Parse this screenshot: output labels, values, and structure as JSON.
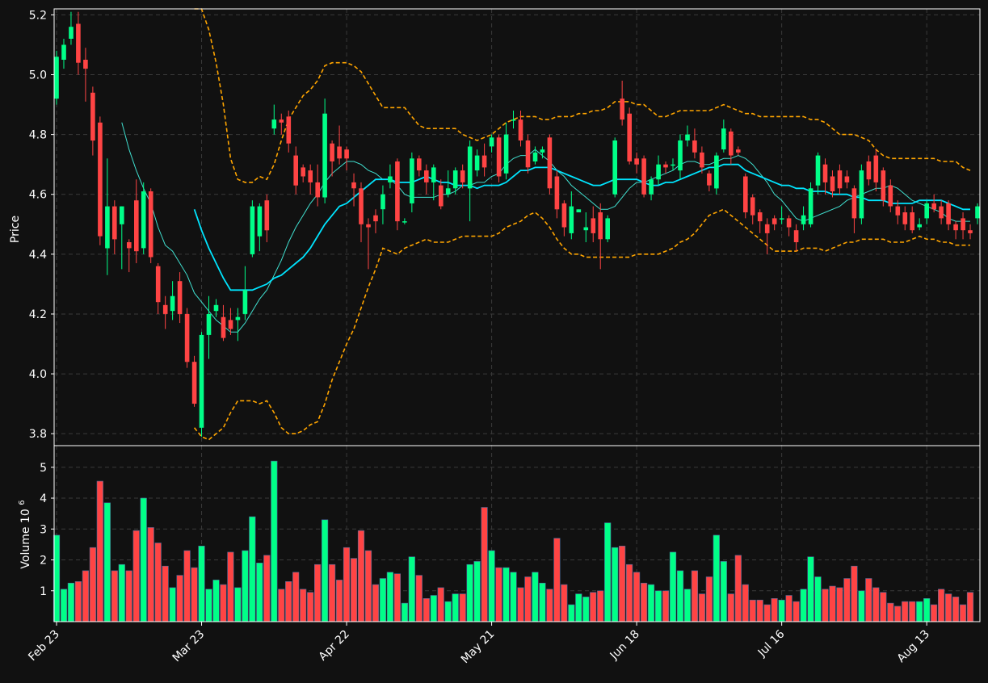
{
  "chart_data": {
    "type": "candlestick",
    "theme": {
      "background": "#111111",
      "up_color": "#00ff88",
      "down_color": "#ff4444",
      "grid": "dashed",
      "ma_short_color": "#40e0d0",
      "ma_long_color": "#00e5ff",
      "band_color": "#ffa500"
    },
    "price_panel": {
      "ylabel": "Price",
      "ylim": [
        3.76,
        5.22
      ],
      "yticks": [
        "3.8",
        "4.0",
        "4.2",
        "4.4",
        "4.6",
        "4.8",
        "5.0",
        "5.2"
      ]
    },
    "volume_panel": {
      "ylabel": "Volume",
      "ylabel_exponent": "6",
      "ylim": [
        0,
        5.7
      ],
      "yticks": [
        "1",
        "2",
        "3",
        "4",
        "5"
      ]
    },
    "xticks": [
      "Feb 23",
      "Mar 23",
      "Apr 22",
      "May 21",
      "Jun 18",
      "Jul 16",
      "Aug 13"
    ],
    "xtick_positions": [
      0,
      20,
      40,
      60,
      80,
      100,
      120
    ],
    "candles": [
      [
        4.92,
        5.06,
        5.08,
        4.9
      ],
      [
        5.05,
        5.1,
        5.12,
        5.02
      ],
      [
        5.12,
        5.16,
        5.21,
        5.1
      ],
      [
        5.17,
        5.04,
        5.21,
        5.0
      ],
      [
        5.05,
        5.02,
        5.09,
        4.91
      ],
      [
        4.94,
        4.78,
        4.96,
        4.73
      ],
      [
        4.84,
        4.46,
        4.86,
        4.43
      ],
      [
        4.42,
        4.56,
        4.72,
        4.33
      ],
      [
        4.56,
        4.45,
        4.58,
        4.4
      ],
      [
        4.5,
        4.56,
        4.56,
        4.35
      ],
      [
        4.44,
        4.42,
        4.45,
        4.34
      ],
      [
        4.58,
        4.41,
        4.65,
        4.37
      ],
      [
        4.42,
        4.61,
        4.64,
        4.4
      ],
      [
        4.61,
        4.39,
        4.62,
        4.37
      ],
      [
        4.36,
        4.24,
        4.37,
        4.2
      ],
      [
        4.23,
        4.2,
        4.26,
        4.15
      ],
      [
        4.21,
        4.26,
        4.31,
        4.18
      ],
      [
        4.31,
        4.2,
        4.34,
        4.17
      ],
      [
        4.2,
        4.04,
        4.22,
        4.02
      ],
      [
        4.04,
        3.9,
        4.06,
        3.89
      ],
      [
        3.82,
        4.13,
        4.14,
        3.79
      ],
      [
        4.13,
        4.2,
        4.26,
        4.05
      ],
      [
        4.21,
        4.23,
        4.25,
        4.19
      ],
      [
        4.19,
        4.12,
        4.23,
        4.11
      ],
      [
        4.18,
        4.15,
        4.22,
        4.13
      ],
      [
        4.18,
        4.19,
        4.22,
        4.11
      ],
      [
        4.2,
        4.28,
        4.36,
        4.18
      ],
      [
        4.4,
        4.56,
        4.58,
        4.39
      ],
      [
        4.46,
        4.56,
        4.57,
        4.41
      ],
      [
        4.58,
        4.48,
        4.6,
        4.44
      ],
      [
        4.82,
        4.85,
        4.9,
        4.8
      ],
      [
        4.85,
        4.84,
        4.87,
        4.8
      ],
      [
        4.86,
        4.77,
        4.88,
        4.74
      ],
      [
        4.73,
        4.63,
        4.76,
        4.6
      ],
      [
        4.69,
        4.66,
        4.7,
        4.64
      ],
      [
        4.68,
        4.64,
        4.7,
        4.6
      ],
      [
        4.64,
        4.59,
        4.7,
        4.56
      ],
      [
        4.59,
        4.87,
        4.92,
        4.57
      ],
      [
        4.77,
        4.71,
        4.78,
        4.66
      ],
      [
        4.76,
        4.72,
        4.83,
        4.7
      ],
      [
        4.75,
        4.72,
        4.76,
        4.68
      ],
      [
        4.64,
        4.62,
        4.67,
        4.56
      ],
      [
        4.62,
        4.5,
        4.64,
        4.44
      ],
      [
        4.5,
        4.49,
        4.52,
        4.35
      ],
      [
        4.53,
        4.51,
        4.55,
        4.47
      ],
      [
        4.55,
        4.6,
        4.63,
        4.5
      ],
      [
        4.64,
        4.66,
        4.7,
        4.62
      ],
      [
        4.71,
        4.51,
        4.72,
        4.48
      ],
      [
        4.51,
        4.51,
        4.52,
        4.5
      ],
      [
        4.57,
        4.72,
        4.74,
        4.54
      ],
      [
        4.72,
        4.68,
        4.73,
        4.66
      ],
      [
        4.68,
        4.64,
        4.7,
        4.6
      ],
      [
        4.64,
        4.69,
        4.7,
        4.58
      ],
      [
        4.63,
        4.56,
        4.65,
        4.55
      ],
      [
        4.6,
        4.62,
        4.68,
        4.59
      ],
      [
        4.62,
        4.68,
        4.69,
        4.6
      ],
      [
        4.68,
        4.64,
        4.7,
        4.62
      ],
      [
        4.62,
        4.76,
        4.78,
        4.51
      ],
      [
        4.68,
        4.73,
        4.75,
        4.66
      ],
      [
        4.73,
        4.69,
        4.77,
        4.66
      ],
      [
        4.76,
        4.79,
        4.8,
        4.74
      ],
      [
        4.79,
        4.66,
        4.8,
        4.64
      ],
      [
        4.67,
        4.8,
        4.84,
        4.65
      ],
      [
        4.85,
        4.85,
        4.88,
        4.82
      ],
      [
        4.85,
        4.78,
        4.88,
        4.76
      ],
      [
        4.78,
        4.69,
        4.8,
        4.67
      ],
      [
        4.71,
        4.74,
        4.76,
        4.7
      ],
      [
        4.74,
        4.75,
        4.76,
        4.72
      ],
      [
        4.79,
        4.62,
        4.8,
        4.6
      ],
      [
        4.66,
        4.55,
        4.68,
        4.52
      ],
      [
        4.57,
        4.49,
        4.58,
        4.46
      ],
      [
        4.47,
        4.56,
        4.61,
        4.45
      ],
      [
        4.54,
        4.55,
        4.55,
        4.54
      ],
      [
        4.48,
        4.49,
        4.54,
        4.44
      ],
      [
        4.52,
        4.47,
        4.56,
        4.44
      ],
      [
        4.54,
        4.45,
        4.57,
        4.35
      ],
      [
        4.45,
        4.52,
        4.53,
        4.44
      ],
      [
        4.6,
        4.78,
        4.79,
        4.59
      ],
      [
        4.92,
        4.85,
        4.98,
        4.83
      ],
      [
        4.87,
        4.71,
        4.89,
        4.7
      ],
      [
        4.72,
        4.7,
        4.74,
        4.67
      ],
      [
        4.72,
        4.6,
        4.73,
        4.59
      ],
      [
        4.6,
        4.65,
        4.66,
        4.58
      ],
      [
        4.65,
        4.7,
        4.73,
        4.63
      ],
      [
        4.7,
        4.69,
        4.71,
        4.67
      ],
      [
        4.7,
        4.7,
        4.72,
        4.68
      ],
      [
        4.68,
        4.78,
        4.8,
        4.65
      ],
      [
        4.78,
        4.8,
        4.83,
        4.76
      ],
      [
        4.78,
        4.74,
        4.82,
        4.72
      ],
      [
        4.74,
        4.69,
        4.76,
        4.67
      ],
      [
        4.67,
        4.63,
        4.68,
        4.61
      ],
      [
        4.62,
        4.73,
        4.74,
        4.6
      ],
      [
        4.75,
        4.82,
        4.85,
        4.74
      ],
      [
        4.81,
        4.73,
        4.82,
        4.7
      ],
      [
        4.75,
        4.74,
        4.76,
        4.73
      ],
      [
        4.66,
        4.54,
        4.67,
        4.52
      ],
      [
        4.59,
        4.53,
        4.6,
        4.5
      ],
      [
        4.54,
        4.51,
        4.55,
        4.47
      ],
      [
        4.5,
        4.47,
        4.52,
        4.4
      ],
      [
        4.52,
        4.5,
        4.53,
        4.48
      ],
      [
        4.52,
        4.52,
        4.56,
        4.5
      ],
      [
        4.52,
        4.49,
        4.53,
        4.46
      ],
      [
        4.48,
        4.44,
        4.5,
        4.41
      ],
      [
        4.5,
        4.53,
        4.56,
        4.48
      ],
      [
        4.5,
        4.62,
        4.64,
        4.49
      ],
      [
        4.63,
        4.73,
        4.74,
        4.6
      ],
      [
        4.7,
        4.64,
        4.72,
        4.6
      ],
      [
        4.66,
        4.61,
        4.68,
        4.59
      ],
      [
        4.68,
        4.62,
        4.7,
        4.6
      ],
      [
        4.66,
        4.64,
        4.68,
        4.62
      ],
      [
        4.62,
        4.52,
        4.63,
        4.47
      ],
      [
        4.52,
        4.68,
        4.7,
        4.5
      ],
      [
        4.71,
        4.65,
        4.73,
        4.63
      ],
      [
        4.73,
        4.64,
        4.75,
        4.61
      ],
      [
        4.68,
        4.58,
        4.69,
        4.56
      ],
      [
        4.63,
        4.56,
        4.65,
        4.54
      ],
      [
        4.56,
        4.53,
        4.58,
        4.5
      ],
      [
        4.54,
        4.5,
        4.56,
        4.48
      ],
      [
        4.54,
        4.48,
        4.56,
        4.47
      ],
      [
        4.49,
        4.5,
        4.52,
        4.48
      ],
      [
        4.52,
        4.57,
        4.58,
        4.5
      ],
      [
        4.57,
        4.55,
        4.6,
        4.54
      ],
      [
        4.56,
        4.52,
        4.58,
        4.5
      ],
      [
        4.57,
        4.5,
        4.58,
        4.48
      ],
      [
        4.5,
        4.48,
        4.51,
        4.45
      ],
      [
        4.52,
        4.48,
        4.54,
        4.45
      ],
      [
        4.48,
        4.47,
        4.5,
        4.45
      ],
      [
        4.52,
        4.56,
        4.57,
        4.5
      ]
    ],
    "volumes": [
      2.8,
      1.05,
      1.25,
      1.3,
      1.65,
      2.4,
      4.55,
      3.85,
      1.65,
      1.85,
      1.65,
      2.95,
      4.0,
      3.05,
      2.55,
      1.8,
      1.1,
      1.5,
      2.3,
      1.75,
      2.45,
      1.05,
      1.35,
      1.2,
      2.25,
      1.1,
      2.3,
      3.4,
      1.9,
      2.15,
      5.2,
      1.05,
      1.3,
      1.6,
      1.05,
      0.95,
      1.85,
      3.3,
      1.85,
      1.35,
      2.4,
      2.05,
      2.95,
      2.3,
      1.2,
      1.4,
      1.6,
      1.55,
      0.6,
      2.1,
      1.5,
      0.75,
      0.85,
      1.1,
      0.65,
      0.9,
      0.9,
      1.85,
      1.95,
      3.7,
      2.3,
      1.75,
      1.75,
      1.6,
      1.1,
      1.45,
      1.6,
      1.25,
      1.05,
      2.7,
      1.2,
      0.55,
      0.9,
      0.8,
      0.95,
      1.0,
      3.2,
      2.4,
      2.45,
      1.85,
      1.6,
      1.25,
      1.2,
      1.0,
      1.0,
      2.25,
      1.65,
      1.05,
      1.65,
      0.9,
      1.45,
      2.8,
      1.95,
      0.9,
      2.15,
      1.2,
      0.7,
      0.7,
      0.55,
      0.75,
      0.7,
      0.85,
      0.65,
      1.05,
      2.1,
      1.45,
      1.05,
      1.15,
      1.1,
      1.4,
      1.8,
      1.0,
      1.4,
      1.1,
      0.95,
      0.6,
      0.5,
      0.65,
      0.65,
      0.65,
      0.75,
      0.55,
      1.05,
      0.9,
      0.8,
      0.55,
      0.95
    ],
    "ma_short": [
      null,
      null,
      null,
      null,
      null,
      null,
      null,
      null,
      null,
      4.84,
      4.75,
      4.68,
      4.62,
      4.57,
      4.49,
      4.43,
      4.41,
      4.37,
      4.33,
      4.27,
      4.24,
      4.21,
      4.18,
      4.16,
      4.14,
      4.14,
      4.17,
      4.21,
      4.25,
      4.28,
      4.33,
      4.38,
      4.44,
      4.49,
      4.53,
      4.57,
      4.6,
      4.64,
      4.67,
      4.69,
      4.71,
      4.71,
      4.7,
      4.68,
      4.67,
      4.65,
      4.65,
      4.63,
      4.6,
      4.59,
      4.59,
      4.59,
      4.59,
      4.6,
      4.6,
      4.61,
      4.63,
      4.63,
      4.64,
      4.64,
      4.66,
      4.67,
      4.7,
      4.72,
      4.73,
      4.73,
      4.75,
      4.73,
      4.71,
      4.68,
      4.66,
      4.63,
      4.61,
      4.59,
      4.57,
      4.55,
      4.55,
      4.56,
      4.59,
      4.62,
      4.64,
      4.64,
      4.65,
      4.66,
      4.67,
      4.68,
      4.7,
      4.71,
      4.71,
      4.7,
      4.7,
      4.71,
      4.72,
      4.72,
      4.73,
      4.72,
      4.7,
      4.67,
      4.64,
      4.6,
      4.58,
      4.55,
      4.52,
      4.51,
      4.52,
      4.53,
      4.54,
      4.55,
      4.56,
      4.58,
      4.59,
      4.6,
      4.61,
      4.62,
      4.62,
      4.63,
      4.62,
      4.6,
      4.58,
      4.57,
      4.56,
      4.55,
      4.54,
      4.52,
      4.51,
      4.51,
      4.51
    ],
    "ma_long": [
      null,
      null,
      null,
      null,
      null,
      null,
      null,
      null,
      null,
      null,
      null,
      null,
      null,
      null,
      null,
      null,
      null,
      null,
      null,
      4.55,
      4.48,
      4.42,
      4.37,
      4.32,
      4.28,
      4.28,
      4.28,
      4.28,
      4.29,
      4.3,
      4.32,
      4.33,
      4.35,
      4.37,
      4.39,
      4.42,
      4.46,
      4.5,
      4.53,
      4.56,
      4.57,
      4.59,
      4.61,
      4.63,
      4.65,
      4.65,
      4.65,
      4.64,
      4.64,
      4.64,
      4.65,
      4.66,
      4.65,
      4.64,
      4.64,
      4.63,
      4.63,
      4.63,
      4.62,
      4.63,
      4.63,
      4.63,
      4.64,
      4.66,
      4.68,
      4.68,
      4.69,
      4.69,
      4.69,
      4.68,
      4.67,
      4.66,
      4.65,
      4.64,
      4.63,
      4.63,
      4.64,
      4.65,
      4.65,
      4.65,
      4.65,
      4.64,
      4.63,
      4.63,
      4.64,
      4.64,
      4.65,
      4.66,
      4.67,
      4.68,
      4.69,
      4.69,
      4.7,
      4.7,
      4.7,
      4.68,
      4.67,
      4.66,
      4.65,
      4.64,
      4.63,
      4.63,
      4.62,
      4.62,
      4.61,
      4.61,
      4.61,
      4.6,
      4.6,
      4.6,
      4.59,
      4.59,
      4.58,
      4.58,
      4.58,
      4.57,
      4.57,
      4.57,
      4.57,
      4.58,
      4.58,
      4.58,
      4.58,
      4.57,
      4.56,
      4.55,
      4.55
    ],
    "band_upper": [
      null,
      null,
      null,
      null,
      null,
      null,
      null,
      null,
      null,
      null,
      null,
      null,
      null,
      null,
      null,
      null,
      null,
      null,
      null,
      5.38,
      5.22,
      5.15,
      5.04,
      4.9,
      4.72,
      4.65,
      4.64,
      4.64,
      4.66,
      4.65,
      4.7,
      4.78,
      4.85,
      4.89,
      4.93,
      4.95,
      4.98,
      5.03,
      5.04,
      5.04,
      5.04,
      5.03,
      5.01,
      4.97,
      4.93,
      4.89,
      4.89,
      4.89,
      4.89,
      4.86,
      4.83,
      4.82,
      4.82,
      4.82,
      4.82,
      4.82,
      4.8,
      4.79,
      4.78,
      4.79,
      4.8,
      4.82,
      4.84,
      4.85,
      4.86,
      4.86,
      4.86,
      4.85,
      4.85,
      4.86,
      4.86,
      4.86,
      4.87,
      4.87,
      4.88,
      4.88,
      4.89,
      4.91,
      4.91,
      4.91,
      4.9,
      4.9,
      4.88,
      4.86,
      4.86,
      4.87,
      4.88,
      4.88,
      4.88,
      4.88,
      4.88,
      4.89,
      4.9,
      4.89,
      4.88,
      4.87,
      4.87,
      4.86,
      4.86,
      4.86,
      4.86,
      4.86,
      4.86,
      4.86,
      4.85,
      4.85,
      4.84,
      4.82,
      4.8,
      4.8,
      4.8,
      4.79,
      4.78,
      4.75,
      4.73,
      4.72,
      4.72,
      4.72,
      4.72,
      4.72,
      4.72,
      4.72,
      4.71,
      4.71,
      4.71,
      4.69,
      4.68
    ],
    "band_lower": [
      null,
      null,
      null,
      null,
      null,
      null,
      null,
      null,
      null,
      null,
      null,
      null,
      null,
      null,
      null,
      null,
      null,
      null,
      null,
      3.82,
      3.79,
      3.78,
      3.8,
      3.82,
      3.87,
      3.91,
      3.91,
      3.91,
      3.9,
      3.91,
      3.87,
      3.82,
      3.8,
      3.8,
      3.81,
      3.83,
      3.84,
      3.9,
      3.98,
      4.04,
      4.1,
      4.15,
      4.22,
      4.29,
      4.35,
      4.42,
      4.41,
      4.4,
      4.42,
      4.43,
      4.44,
      4.45,
      4.44,
      4.44,
      4.44,
      4.45,
      4.46,
      4.46,
      4.46,
      4.46,
      4.46,
      4.47,
      4.49,
      4.5,
      4.51,
      4.53,
      4.54,
      4.52,
      4.49,
      4.45,
      4.42,
      4.4,
      4.4,
      4.39,
      4.39,
      4.39,
      4.39,
      4.39,
      4.39,
      4.39,
      4.4,
      4.4,
      4.4,
      4.4,
      4.41,
      4.42,
      4.44,
      4.45,
      4.47,
      4.5,
      4.53,
      4.54,
      4.55,
      4.53,
      4.51,
      4.49,
      4.47,
      4.45,
      4.43,
      4.41,
      4.41,
      4.41,
      4.41,
      4.42,
      4.42,
      4.42,
      4.41,
      4.42,
      4.43,
      4.44,
      4.44,
      4.45,
      4.45,
      4.45,
      4.45,
      4.44,
      4.44,
      4.44,
      4.45,
      4.46,
      4.45,
      4.45,
      4.44,
      4.44,
      4.43,
      4.43,
      4.43
    ]
  }
}
